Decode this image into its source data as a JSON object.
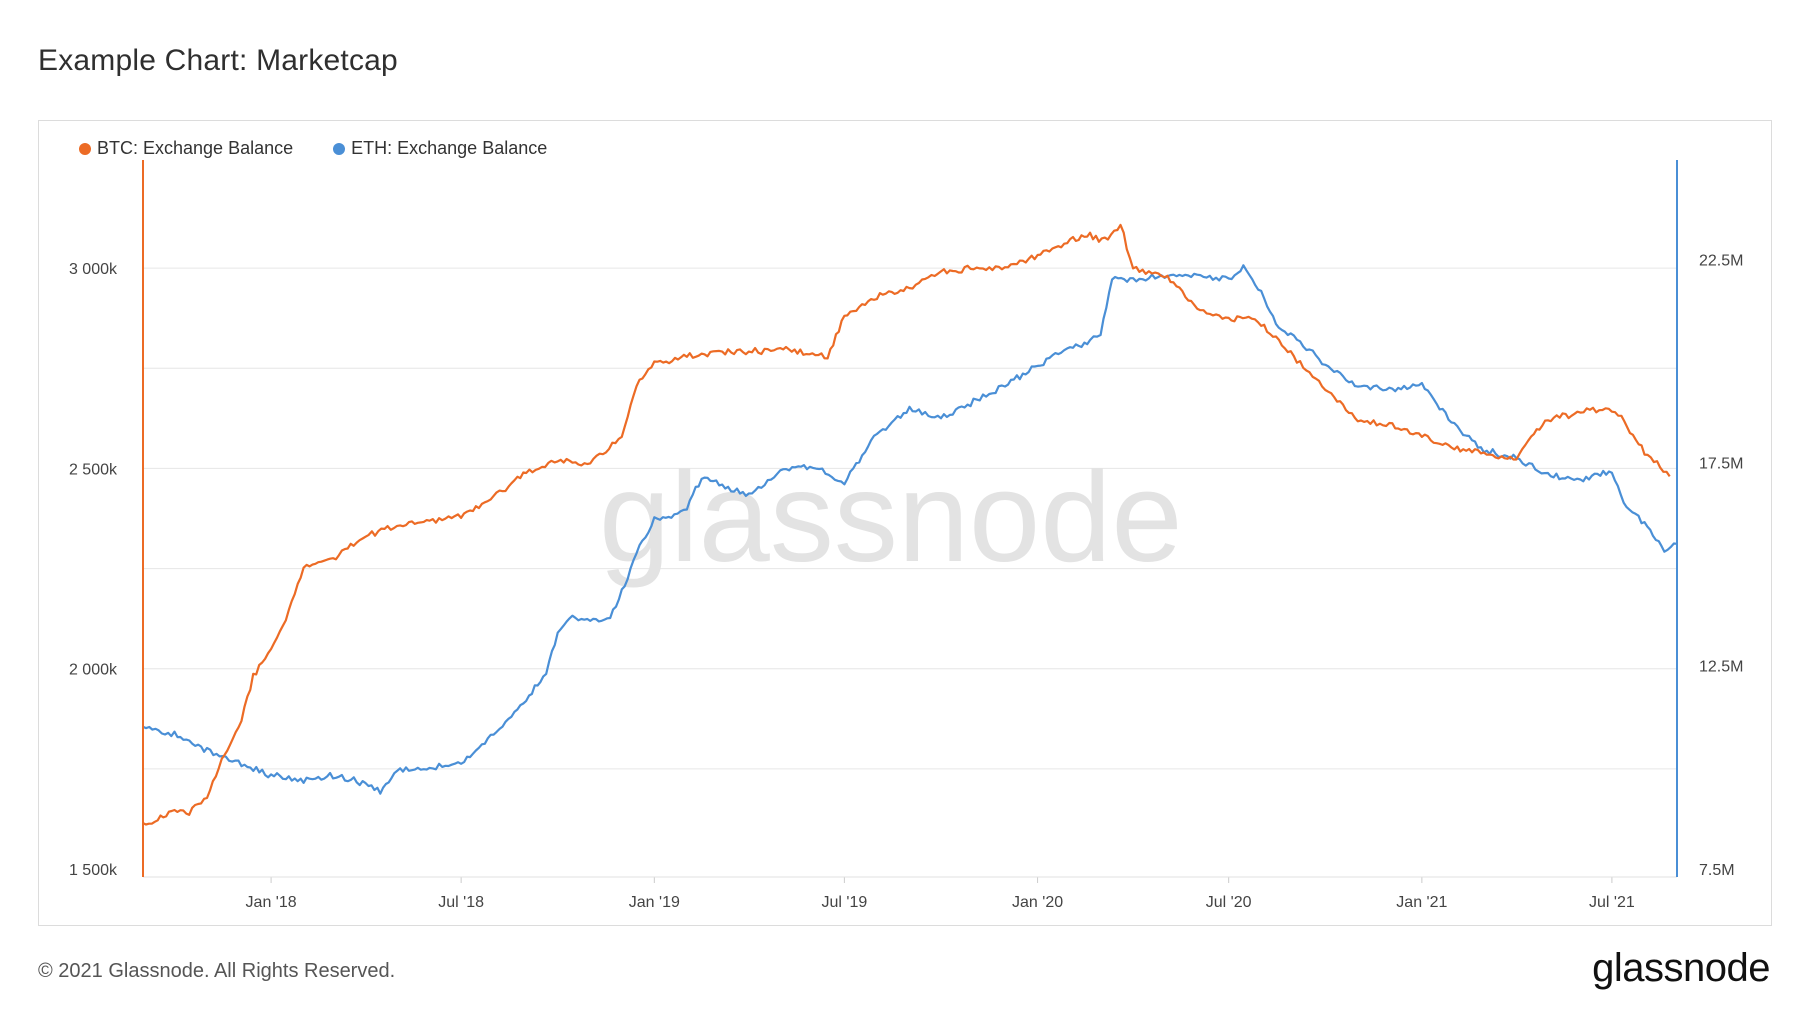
{
  "title": "Example Chart: Marketcap",
  "footer": {
    "copyright": "© 2021 Glassnode. All Rights Reserved.",
    "logo": "glassnode"
  },
  "watermark": "glassnode",
  "colors": {
    "btc": "#ec6b25",
    "eth": "#4a8fd6",
    "grid": "#e6e6e6"
  },
  "chart_data": {
    "type": "line",
    "title": "Example Chart: Marketcap",
    "legend_position": "top-left",
    "grid": true,
    "x_tick_labels": [
      "Jan '18",
      "Jul '18",
      "Jan '19",
      "Jul '19",
      "Jan '20",
      "Jul '20",
      "Jan '21",
      "Jul '21"
    ],
    "x_ticks": [
      "2018-01-01",
      "2018-07-01",
      "2019-01-01",
      "2019-07-01",
      "2020-01-01",
      "2020-07-01",
      "2021-01-01",
      "2021-07-01"
    ],
    "xlim": [
      "2017-09-01",
      "2021-09-01"
    ],
    "y_left": {
      "tick_labels": [
        "1 500k",
        "2 000k",
        "2 500k",
        "3 000k"
      ],
      "ticks": [
        1500000,
        2000000,
        2500000,
        3000000
      ],
      "ylim": [
        1480000,
        3250000
      ]
    },
    "y_right": {
      "tick_labels": [
        "7.5M",
        "12.5M",
        "17.5M",
        "22.5M"
      ],
      "ticks": [
        7500000,
        12500000,
        17500000,
        22500000
      ],
      "ylim": [
        7300000,
        24750000
      ]
    },
    "series": [
      {
        "name": "BTC: Exchange Balance",
        "axis": "left",
        "x": [
          "2017-09-01",
          "2017-09-15",
          "2017-10-01",
          "2017-10-15",
          "2017-11-01",
          "2017-11-15",
          "2017-12-01",
          "2017-12-15",
          "2018-01-01",
          "2018-01-15",
          "2018-02-01",
          "2018-02-15",
          "2018-03-01",
          "2018-03-15",
          "2018-04-01",
          "2018-05-01",
          "2018-06-01",
          "2018-07-01",
          "2018-08-01",
          "2018-09-01",
          "2018-10-01",
          "2018-11-01",
          "2018-12-01",
          "2018-12-15",
          "2019-01-01",
          "2019-02-01",
          "2019-03-01",
          "2019-04-01",
          "2019-05-01",
          "2019-05-20",
          "2019-06-15",
          "2019-07-01",
          "2019-08-01",
          "2019-09-01",
          "2019-10-01",
          "2019-11-01",
          "2019-12-01",
          "2020-01-01",
          "2020-02-01",
          "2020-02-20",
          "2020-03-05",
          "2020-03-20",
          "2020-04-01",
          "2020-05-01",
          "2020-06-01",
          "2020-07-01",
          "2020-07-20",
          "2020-08-01",
          "2020-09-01",
          "2020-10-01",
          "2020-11-01",
          "2020-12-01",
          "2021-01-01",
          "2021-02-01",
          "2021-03-01",
          "2021-04-01",
          "2021-04-15",
          "2021-05-01",
          "2021-06-01",
          "2021-06-25",
          "2021-07-10",
          "2021-08-01",
          "2021-08-25"
        ],
        "values": [
          1610000,
          1620000,
          1650000,
          1640000,
          1680000,
          1770000,
          1850000,
          1980000,
          2050000,
          2120000,
          2250000,
          2270000,
          2270000,
          2300000,
          2330000,
          2360000,
          2370000,
          2380000,
          2430000,
          2490000,
          2520000,
          2510000,
          2580000,
          2710000,
          2760000,
          2780000,
          2790000,
          2790000,
          2800000,
          2790000,
          2780000,
          2880000,
          2930000,
          2950000,
          2990000,
          3000000,
          3000000,
          3030000,
          3070000,
          3080000,
          3070000,
          3110000,
          3000000,
          2980000,
          2900000,
          2870000,
          2880000,
          2860000,
          2780000,
          2700000,
          2620000,
          2610000,
          2580000,
          2550000,
          2540000,
          2520000,
          2580000,
          2620000,
          2640000,
          2650000,
          2630000,
          2540000,
          2480000
        ]
      },
      {
        "name": "ETH: Exchange Balance",
        "axis": "right",
        "x": [
          "2017-09-01",
          "2017-10-01",
          "2017-11-01",
          "2017-12-01",
          "2018-01-01",
          "2018-02-01",
          "2018-03-01",
          "2018-04-01",
          "2018-04-15",
          "2018-05-01",
          "2018-06-01",
          "2018-07-01",
          "2018-08-01",
          "2018-09-01",
          "2018-09-20",
          "2018-10-01",
          "2018-10-15",
          "2018-11-01",
          "2018-11-20",
          "2018-12-01",
          "2018-12-15",
          "2019-01-01",
          "2019-01-20",
          "2019-02-01",
          "2019-02-15",
          "2019-03-01",
          "2019-04-01",
          "2019-05-01",
          "2019-06-01",
          "2019-07-01",
          "2019-08-01",
          "2019-09-01",
          "2019-10-01",
          "2019-11-01",
          "2019-12-01",
          "2020-01-01",
          "2020-02-01",
          "2020-02-20",
          "2020-03-01",
          "2020-03-12",
          "2020-04-01",
          "2020-05-01",
          "2020-06-01",
          "2020-07-01",
          "2020-07-15",
          "2020-08-01",
          "2020-08-15",
          "2020-09-01",
          "2020-10-01",
          "2020-11-01",
          "2020-12-01",
          "2021-01-01",
          "2021-02-01",
          "2021-03-01",
          "2021-04-01",
          "2021-05-01",
          "2021-05-20",
          "2021-06-01",
          "2021-06-20",
          "2021-07-01",
          "2021-07-15",
          "2021-08-01",
          "2021-08-20",
          "2021-09-01"
        ],
        "values": [
          11000000,
          10800000,
          10400000,
          10100000,
          9800000,
          9700000,
          9800000,
          9600000,
          9400000,
          9900000,
          10000000,
          10100000,
          10800000,
          11700000,
          12300000,
          13300000,
          13700000,
          13600000,
          13700000,
          14300000,
          15300000,
          16100000,
          16200000,
          16400000,
          17100000,
          17000000,
          16700000,
          17300000,
          17400000,
          17000000,
          18200000,
          18800000,
          18600000,
          19000000,
          19400000,
          19900000,
          20300000,
          20500000,
          20700000,
          22000000,
          22000000,
          22100000,
          22100000,
          22000000,
          22300000,
          21700000,
          20900000,
          20600000,
          19900000,
          19400000,
          19300000,
          19400000,
          18400000,
          17800000,
          17600000,
          17200000,
          17100000,
          17100000,
          17200000,
          17300000,
          16400000,
          16000000,
          15300000,
          15500000
        ]
      }
    ]
  }
}
